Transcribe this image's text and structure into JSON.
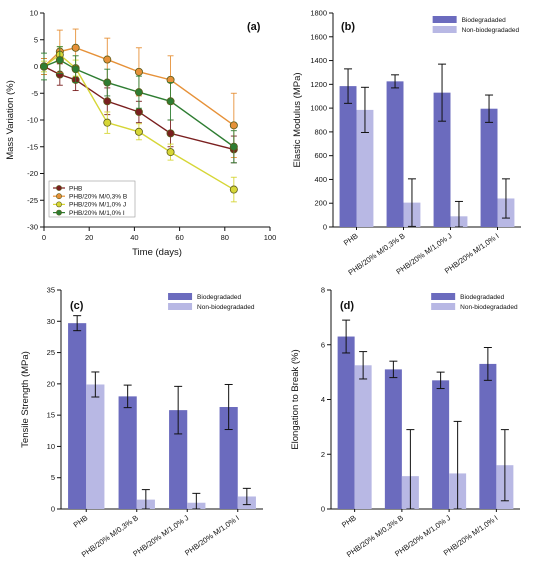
{
  "colors": {
    "biodegradaded": "#6b6bbe",
    "non_biodegradaded": "#b8b8e4",
    "phb": "#7a1f1f",
    "b": "#e69138",
    "j": "#d6d636",
    "i": "#2e7d32"
  },
  "chart_data": [
    {
      "id": "a",
      "panel_tag": "(a)",
      "type": "line",
      "xlabel": "Time (days)",
      "ylabel": "Mass Variation (%)",
      "xlim": [
        0,
        100
      ],
      "ylim": [
        -30,
        10
      ],
      "xticks": [
        0,
        20,
        40,
        60,
        80,
        100
      ],
      "yticks": [
        -30,
        -25,
        -20,
        -15,
        -10,
        -5,
        0,
        5,
        10
      ],
      "grid": false,
      "legend_position": "bottom-left",
      "series": [
        {
          "name": "PHB",
          "color_key": "phb",
          "x": [
            0,
            7,
            14,
            28,
            42,
            56,
            84
          ],
          "y": [
            0,
            -1.5,
            -2.5,
            -6.5,
            -8.5,
            -12.5,
            -15.5
          ],
          "err": [
            1.5,
            2.0,
            2.0,
            2.5,
            2.0,
            2.5,
            2.5
          ]
        },
        {
          "name": "PHB/20% M/0,3% B",
          "color_key": "b",
          "x": [
            0,
            7,
            14,
            28,
            42,
            56,
            84
          ],
          "y": [
            0,
            2.8,
            3.5,
            1.3,
            -1.0,
            -2.5,
            -11.0
          ],
          "err": [
            1.5,
            4.0,
            3.5,
            4.0,
            4.5,
            4.5,
            6.0
          ]
        },
        {
          "name": "PHB/20% M/1,0% J",
          "color_key": "j",
          "x": [
            0,
            7,
            14,
            28,
            42,
            56,
            84
          ],
          "y": [
            0,
            2.2,
            -0.3,
            -10.5,
            -12.2,
            -16.0,
            -23.0
          ],
          "err": [
            1.0,
            1.5,
            1.5,
            2.0,
            1.5,
            1.5,
            2.3
          ]
        },
        {
          "name": "PHB/20% M/1,0% I",
          "color_key": "i",
          "x": [
            0,
            7,
            14,
            28,
            42,
            56,
            84
          ],
          "y": [
            0,
            1.2,
            -0.5,
            -3.0,
            -4.8,
            -6.5,
            -15.0
          ],
          "err": [
            2.5,
            2.5,
            2.5,
            2.5,
            3.0,
            3.5,
            3.0
          ]
        }
      ]
    },
    {
      "id": "b",
      "panel_tag": "(b)",
      "type": "bar",
      "xlabel": "",
      "ylabel": "Elastic Modulus (MPa)",
      "ylim": [
        0,
        1800
      ],
      "yticks": [
        0,
        200,
        400,
        600,
        800,
        1000,
        1200,
        1400,
        1600,
        1800
      ],
      "categories": [
        "PHB",
        "PHB/20% M/0,3% B",
        "PHB/20% M/1,0% J",
        "PHB/20% M/1,0% I"
      ],
      "legend_position": "top-right",
      "series": [
        {
          "name": "Biodegradaded",
          "color_key": "biodegradaded",
          "values": [
            1185,
            1225,
            1130,
            995
          ],
          "err": [
            145,
            55,
            240,
            115
          ]
        },
        {
          "name": "Non-biodegradaded",
          "color_key": "non_biodegradaded",
          "values": [
            985,
            205,
            90,
            240
          ],
          "err": [
            190,
            200,
            125,
            165
          ]
        }
      ]
    },
    {
      "id": "c",
      "panel_tag": "(c)",
      "type": "bar",
      "xlabel": "",
      "ylabel": "Tensile Strength (MPa)",
      "ylim": [
        0,
        35
      ],
      "yticks": [
        0,
        5,
        10,
        15,
        20,
        25,
        30,
        35
      ],
      "categories": [
        "PHB",
        "PHB/20% M/0,3% B",
        "PHB/20% M/1,0% J",
        "PHB/20% M/1,0% I"
      ],
      "legend_position": "top-right",
      "series": [
        {
          "name": "Biodegradaded",
          "color_key": "biodegradaded",
          "values": [
            29.7,
            18.0,
            15.8,
            16.3
          ],
          "err": [
            1.2,
            1.8,
            3.8,
            3.6
          ]
        },
        {
          "name": "Non-biodegradaded",
          "color_key": "non_biodegradaded",
          "values": [
            19.9,
            1.5,
            1.0,
            2.0
          ],
          "err": [
            2.0,
            1.6,
            1.5,
            1.3
          ]
        }
      ]
    },
    {
      "id": "d",
      "panel_tag": "(d)",
      "type": "bar",
      "xlabel": "",
      "ylabel": "Elongation to Break (%)",
      "ylim": [
        0,
        8
      ],
      "yticks": [
        0,
        2,
        4,
        6,
        8
      ],
      "categories": [
        "PHB",
        "PHB/20% M/0,3% B",
        "PHB/20% M/1,0% J",
        "PHB/20% M/1,0% I"
      ],
      "legend_position": "top-right",
      "series": [
        {
          "name": "Biodegradaded",
          "color_key": "biodegradaded",
          "values": [
            6.3,
            5.1,
            4.7,
            5.3
          ],
          "err": [
            0.6,
            0.3,
            0.3,
            0.6
          ]
        },
        {
          "name": "Non-biodegradaded",
          "color_key": "non_biodegradaded",
          "values": [
            5.25,
            1.2,
            1.3,
            1.6
          ],
          "err": [
            0.5,
            1.7,
            1.9,
            1.3
          ]
        }
      ]
    }
  ]
}
